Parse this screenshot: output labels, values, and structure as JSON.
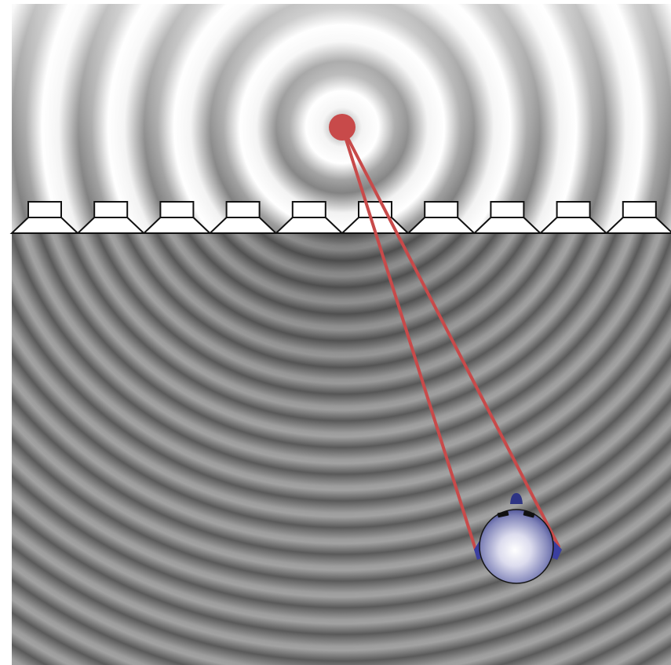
{
  "figure": {
    "description_labels": [],
    "colors": {
      "background": "#ffffff",
      "wave_light": "#ffffff",
      "wave_dark": "#3c3c3c",
      "source": "#c84a4a",
      "rays": "#c84a4a",
      "speaker_fill": "#ffffff",
      "speaker_stroke": "#111111",
      "array_line": "#111111",
      "head_base": "#2e3484",
      "head_highlight": "#ffffff"
    },
    "elements": {
      "virtual_source": "red-dot-source",
      "speaker_array": "loudspeaker-row",
      "listener": "listener-head-topview",
      "rays": "propagation-paths-to-ears"
    },
    "speaker_count": 10
  }
}
